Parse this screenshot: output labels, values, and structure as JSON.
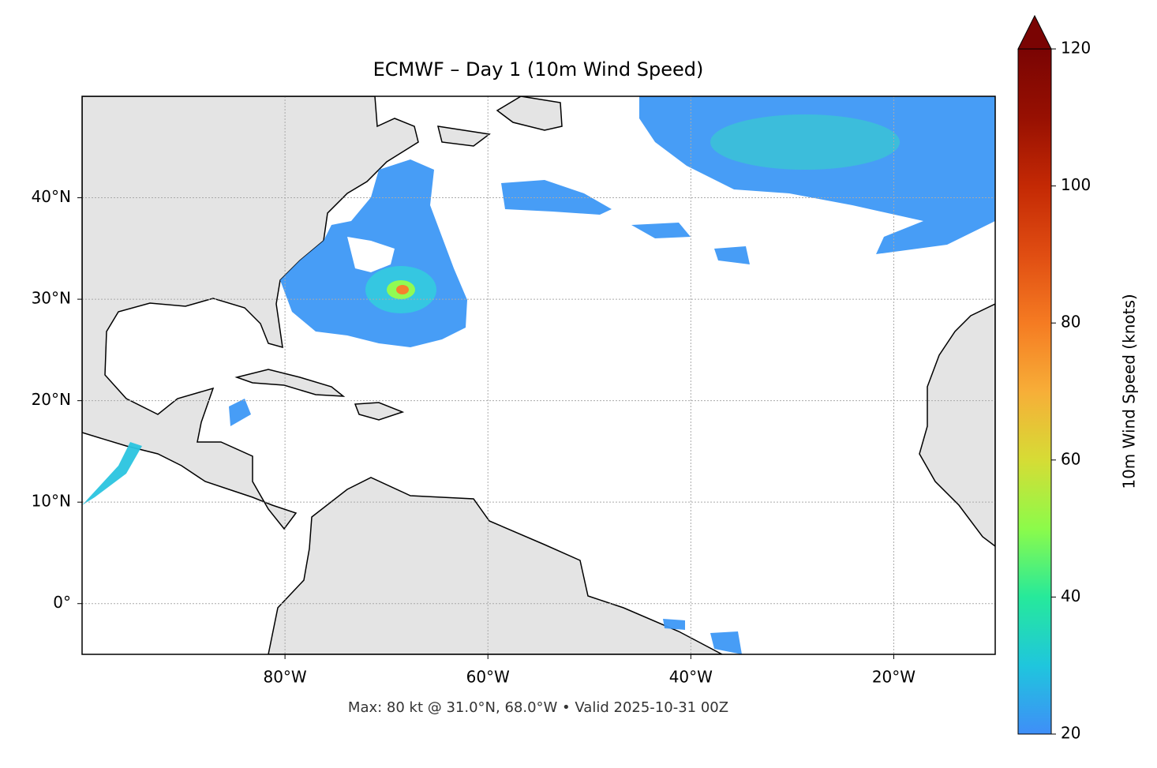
{
  "chart_data": {
    "type": "map",
    "title": "ECMWF – Day 1 (10m Wind Speed)",
    "footnote": "Max: 80 kt @ 31.0°N, 68.0°W • Valid 2025-10-31 00Z",
    "xlim": [
      -100,
      -10
    ],
    "ylim": [
      -5,
      50
    ],
    "xticks": [
      {
        "value": -80,
        "label": "80°W"
      },
      {
        "value": -60,
        "label": "60°W"
      },
      {
        "value": -40,
        "label": "40°W"
      },
      {
        "value": -20,
        "label": "20°W"
      }
    ],
    "yticks": [
      {
        "value": 0,
        "label": "0°"
      },
      {
        "value": 10,
        "label": "10°N"
      },
      {
        "value": 20,
        "label": "20°N"
      },
      {
        "value": 30,
        "label": "30°N"
      },
      {
        "value": 40,
        "label": "40°N"
      }
    ],
    "grid": true,
    "colorbar": {
      "label": "10m Wind Speed (knots)",
      "clim": [
        20,
        120
      ],
      "ticks": [
        20,
        40,
        60,
        80,
        100,
        120
      ],
      "extend": "max",
      "colors": [
        "#3f8ef8",
        "#1fc6dd",
        "#26e99b",
        "#8cfb4a",
        "#d6dc35",
        "#f7ae38",
        "#f57b22",
        "#e04d12",
        "#c42904",
        "#971002",
        "#7a0403"
      ]
    }
  }
}
